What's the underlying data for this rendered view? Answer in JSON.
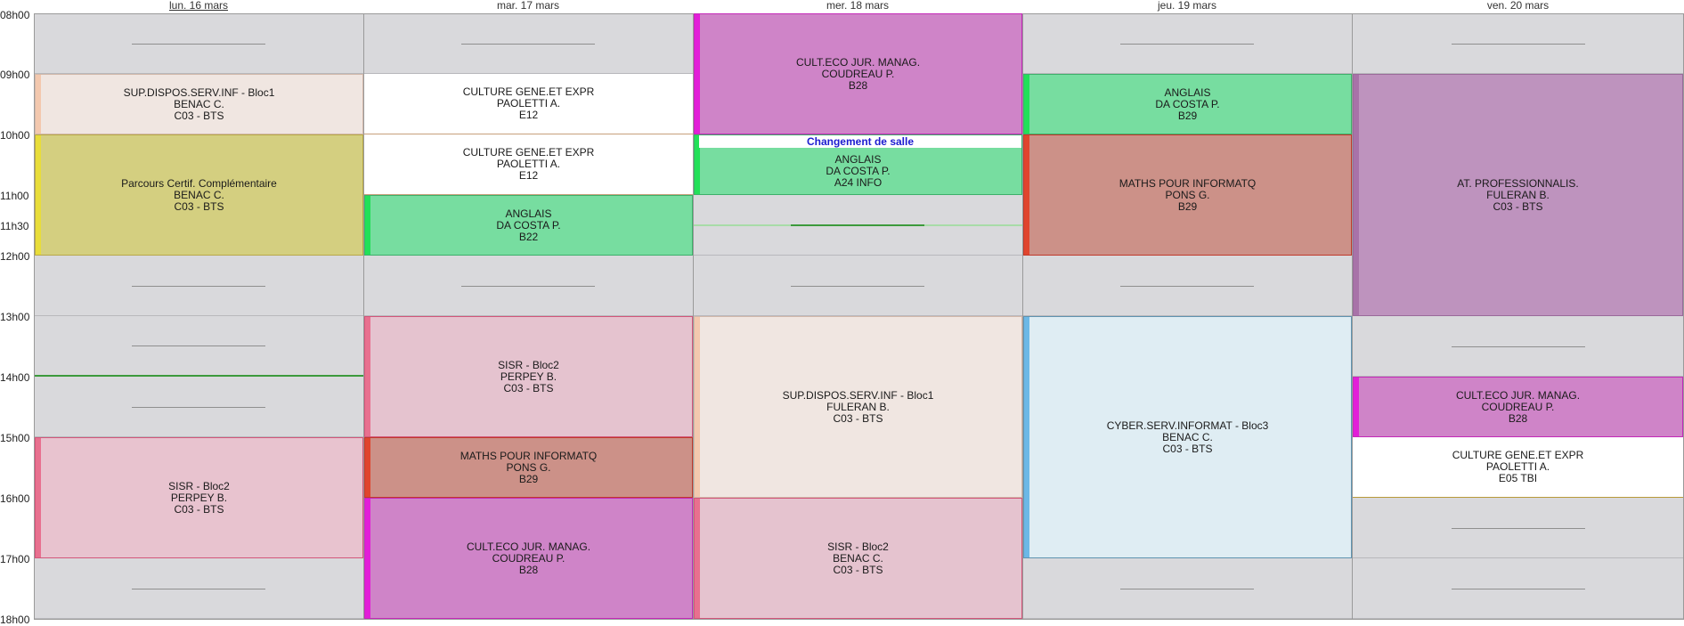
{
  "days": [
    {
      "label": "lun. 16 mars",
      "active": true
    },
    {
      "label": "mar. 17 mars",
      "active": false
    },
    {
      "label": "mer. 18 mars",
      "active": false
    },
    {
      "label": "jeu. 19 mars",
      "active": false
    },
    {
      "label": "ven. 20 mars",
      "active": false
    }
  ],
  "times": [
    "08h00",
    "09h00",
    "10h00",
    "11h00",
    "11h30",
    "12h00",
    "13h00",
    "14h00",
    "15h00",
    "16h00",
    "17h00",
    "18h00"
  ],
  "notice": "Changement de salle",
  "courses": {
    "mon_supdispos": {
      "title": "SUP.DISPOS.SERV.INF - Bloc1",
      "teacher": "BENAC C.",
      "room": "C03 - BTS"
    },
    "mon_parcours": {
      "title": "Parcours Certif. Complémentaire",
      "teacher": "BENAC C.",
      "room": "C03 - BTS"
    },
    "mon_sisr": {
      "title": "SISR - Bloc2",
      "teacher": "PERPEY B.",
      "room": "C03 - BTS"
    },
    "tue_culture1": {
      "title": "CULTURE GENE.ET EXPR",
      "teacher": "PAOLETTI A.",
      "room": "E12"
    },
    "tue_culture2": {
      "title": "CULTURE GENE.ET EXPR",
      "teacher": "PAOLETTI A.",
      "room": "E12"
    },
    "tue_anglais": {
      "title": "ANGLAIS",
      "teacher": "DA COSTA P.",
      "room": "B22"
    },
    "tue_sisr": {
      "title": "SISR - Bloc2",
      "teacher": "PERPEY B.",
      "room": "C03 - BTS"
    },
    "tue_maths": {
      "title": "MATHS POUR INFORMATQ",
      "teacher": "PONS G.",
      "room": "B29"
    },
    "tue_culteco": {
      "title": "CULT.ECO JUR. MANAG.",
      "teacher": "COUDREAU P.",
      "room": "B28"
    },
    "wed_culteco": {
      "title": "CULT.ECO JUR. MANAG.",
      "teacher": "COUDREAU P.",
      "room": "B28"
    },
    "wed_anglais": {
      "title": "ANGLAIS",
      "teacher": "DA COSTA P.",
      "room": "A24 INFO"
    },
    "wed_supdispos": {
      "title": "SUP.DISPOS.SERV.INF - Bloc1",
      "teacher": "FULERAN B.",
      "room": "C03 - BTS"
    },
    "wed_sisr": {
      "title": "SISR - Bloc2",
      "teacher": "BENAC C.",
      "room": "C03 - BTS"
    },
    "thu_anglais": {
      "title": "ANGLAIS",
      "teacher": "DA COSTA P.",
      "room": "B29"
    },
    "thu_maths": {
      "title": "MATHS POUR INFORMATQ",
      "teacher": "PONS G.",
      "room": "B29"
    },
    "thu_cyber": {
      "title": "CYBER.SERV.INFORMAT - Bloc3",
      "teacher": "BENAC C.",
      "room": "C03 - BTS"
    },
    "fri_atpro": {
      "title": "AT. PROFESSIONNALIS.",
      "teacher": "FULERAN B.",
      "room": "C03 - BTS"
    },
    "fri_culteco": {
      "title": "CULT.ECO JUR. MANAG.",
      "teacher": "COUDREAU P.",
      "room": "B28"
    },
    "fri_culture": {
      "title": "CULTURE GENE.ET EXPR",
      "teacher": "PAOLETTI A.",
      "room": "E05 TBI"
    }
  },
  "colors": {
    "empty": "#d9d9dc",
    "supdispos": "#f0e6e1",
    "parcours": "#d4cf80",
    "sisr": "#e5c3cf",
    "culture": "#ffffff",
    "anglais": "#77dda0",
    "maths": "#cc9188",
    "culteco": "#cf84c8",
    "cyber": "#dfedf3",
    "atpro": "#be93be"
  }
}
